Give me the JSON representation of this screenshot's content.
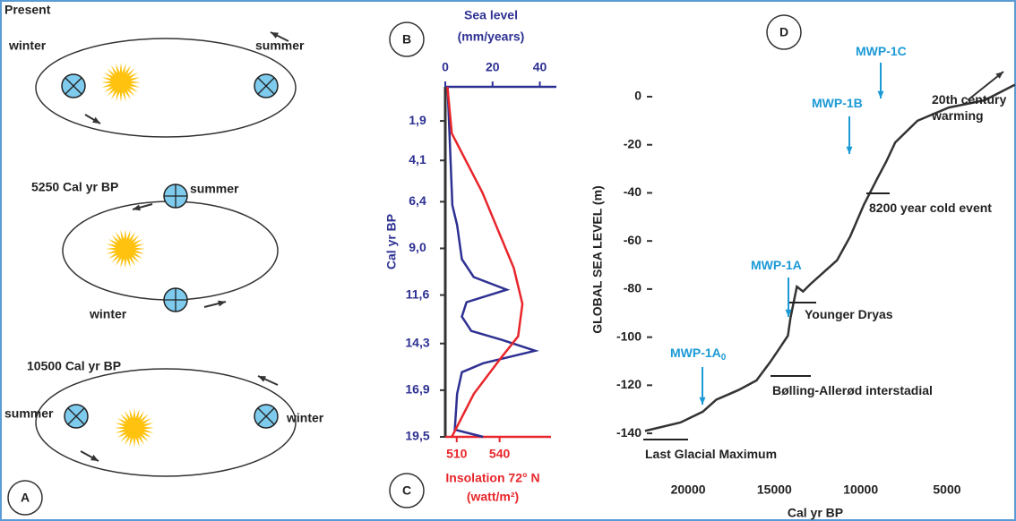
{
  "diagram": {
    "panel": "A",
    "orbits": [
      {
        "title": "Present",
        "left": "winter",
        "right": "summer"
      },
      {
        "title": "5250 Cal yr BP",
        "top": "summer",
        "bottom": "winter"
      },
      {
        "title": "10500 Cal yr BP",
        "left": "summer",
        "right": "winter"
      }
    ]
  },
  "chart_data": [
    {
      "type": "line",
      "panel_top": "B",
      "panel_bottom": "C",
      "x_label": [
        "Sea level",
        "(mm/years)"
      ],
      "x2_label": [
        "Insolation 72° N",
        "(watt/m²)"
      ],
      "y_label": "Cal yr BP",
      "ylim": [
        0,
        19.5
      ],
      "yticks": [
        {
          "value": 1.9,
          "label": "1,9"
        },
        {
          "value": 4.1,
          "label": "4,1"
        },
        {
          "value": 6.4,
          "label": "6,4"
        },
        {
          "value": 9.0,
          "label": "9,0"
        },
        {
          "value": 11.6,
          "label": "11,6"
        },
        {
          "value": 14.3,
          "label": "14,3"
        },
        {
          "value": 16.9,
          "label": "16,9"
        },
        {
          "value": 19.5,
          "label": "19,5"
        }
      ],
      "xlim": [
        0,
        47
      ],
      "xticks": [
        0,
        20,
        40
      ],
      "x2lim": [
        502,
        576
      ],
      "x2ticks": [
        510,
        540
      ],
      "series": [
        {
          "color": "#2e3192",
          "axis": "x",
          "y": [
            0,
            6.6,
            7.7,
            9.6,
            10.6,
            11.3,
            12,
            12.8,
            13.6,
            14.1,
            14.7,
            15.4,
            15.9,
            17.1,
            19.1,
            19.5
          ],
          "values": [
            1,
            3,
            5,
            7,
            12,
            26,
            9,
            7,
            11,
            24,
            38,
            16,
            7,
            5,
            4,
            16
          ]
        },
        {
          "color": "#e8262b",
          "axis": "x2",
          "y": [
            0,
            2.6,
            5.9,
            10.1,
            12.1,
            13.9,
            15.1,
            17.1,
            19.5
          ],
          "values": [
            503.5,
            506.6,
            528,
            550,
            556,
            553,
            541,
            522,
            506.6
          ]
        }
      ]
    },
    {
      "type": "line",
      "panel": "D",
      "y_label": "GLOBAL SEA LEVEL (m)",
      "x_label": "Cal yr BP",
      "xlim": [
        22600,
        1000
      ],
      "xticks": [
        20000,
        15000,
        10000,
        5000
      ],
      "ylim": [
        -145,
        6
      ],
      "yticks": [
        0,
        -20,
        -40,
        -60,
        -80,
        -100,
        -120,
        -140
      ],
      "x": [
        22500,
        20450,
        19150,
        18370,
        17080,
        16040,
        15260,
        14740,
        14220,
        14070,
        13700,
        13340,
        12920,
        11370,
        10600,
        9820,
        9040,
        8520,
        8000,
        6710,
        4890,
        2820,
        1060
      ],
      "series": [
        {
          "color": "#333333",
          "values": [
            -139,
            -135.5,
            -131,
            -126,
            -122,
            -118,
            -110.5,
            -105,
            -99.4,
            -92,
            -79,
            -81,
            -78,
            -68,
            -58,
            -45,
            -34,
            -27,
            -19,
            -10,
            -4.5,
            -1.5,
            5
          ]
        }
      ],
      "annotations": [
        {
          "text": "MWP-1C"
        },
        {
          "text": "MWP-1B"
        },
        {
          "text": "MWP-1A"
        },
        {
          "text": "MWP-1A",
          "subscript": "0"
        },
        {
          "text": "20th century"
        },
        {
          "text": "warming"
        },
        {
          "text": "8200 year cold event"
        },
        {
          "text": "Younger Dryas"
        },
        {
          "text": "Bølling-Allerød interstadial"
        },
        {
          "text": "Last Glacial Maximum"
        }
      ]
    }
  ]
}
